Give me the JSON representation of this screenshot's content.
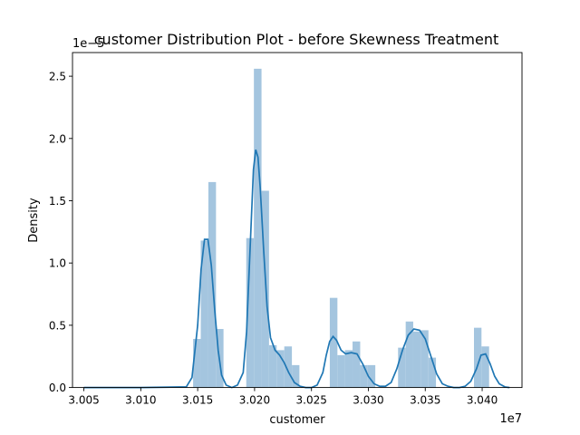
{
  "chart_data": {
    "type": "bar",
    "title": "customer Distribution Plot - before Skewness Treatment",
    "xlabel": "customer",
    "ylabel": "Density",
    "x_offset_label": "1e7",
    "y_offset_label": "1e−5",
    "xlim": [
      3.004,
      3.0435
    ],
    "ylim": [
      0,
      2.69
    ],
    "xticks": [
      3.005,
      3.01,
      3.015,
      3.02,
      3.025,
      3.03,
      3.035,
      3.04
    ],
    "xtick_labels": [
      "3.005",
      "3.010",
      "3.015",
      "3.020",
      "3.025",
      "3.030",
      "3.035",
      "3.040"
    ],
    "yticks": [
      0.0,
      0.5,
      1.0,
      1.5,
      2.0,
      2.5
    ],
    "ytick_labels": [
      "0.0",
      "0.5",
      "1.0",
      "1.5",
      "2.0",
      "2.5"
    ],
    "grid": false,
    "colors": {
      "bars": "#a4c5df",
      "kde": "#1f77b4",
      "axes": "#000000"
    },
    "bins": [
      {
        "x0": 3.0146,
        "x1": 3.01527,
        "value": 0.39
      },
      {
        "x0": 3.01527,
        "x1": 3.01594,
        "value": 1.18
      },
      {
        "x0": 3.01594,
        "x1": 3.01661,
        "value": 1.65
      },
      {
        "x0": 3.01661,
        "x1": 3.01727,
        "value": 0.47
      },
      {
        "x0": 3.01927,
        "x1": 3.01994,
        "value": 1.2
      },
      {
        "x0": 3.01994,
        "x1": 3.02061,
        "value": 2.56
      },
      {
        "x0": 3.02061,
        "x1": 3.02127,
        "value": 1.58
      },
      {
        "x0": 3.02127,
        "x1": 3.02194,
        "value": 0.34
      },
      {
        "x0": 3.02194,
        "x1": 3.02261,
        "value": 0.3
      },
      {
        "x0": 3.02261,
        "x1": 3.02328,
        "value": 0.33
      },
      {
        "x0": 3.02328,
        "x1": 3.02394,
        "value": 0.18
      },
      {
        "x0": 3.02661,
        "x1": 3.02728,
        "value": 0.72
      },
      {
        "x0": 3.02728,
        "x1": 3.02794,
        "value": 0.26
      },
      {
        "x0": 3.02794,
        "x1": 3.02861,
        "value": 0.3
      },
      {
        "x0": 3.02861,
        "x1": 3.02928,
        "value": 0.37
      },
      {
        "x0": 3.02928,
        "x1": 3.02994,
        "value": 0.18
      },
      {
        "x0": 3.02994,
        "x1": 3.03061,
        "value": 0.18
      },
      {
        "x0": 3.03261,
        "x1": 3.03328,
        "value": 0.32
      },
      {
        "x0": 3.03328,
        "x1": 3.03394,
        "value": 0.53
      },
      {
        "x0": 3.03394,
        "x1": 3.03461,
        "value": 0.45
      },
      {
        "x0": 3.03461,
        "x1": 3.03528,
        "value": 0.46
      },
      {
        "x0": 3.03528,
        "x1": 3.03594,
        "value": 0.24
      },
      {
        "x0": 3.03928,
        "x1": 3.03994,
        "value": 0.48
      },
      {
        "x0": 3.03994,
        "x1": 3.04061,
        "value": 0.33
      }
    ],
    "kde": {
      "x": [
        3.005,
        3.01,
        3.014,
        3.0145,
        3.015,
        3.0153,
        3.0156,
        3.0159,
        3.0162,
        3.0165,
        3.0168,
        3.0171,
        3.0175,
        3.018,
        3.0185,
        3.019,
        3.0193,
        3.0196,
        3.0199,
        3.0201,
        3.0203,
        3.0205,
        3.0208,
        3.0211,
        3.0214,
        3.0218,
        3.0222,
        3.0226,
        3.023,
        3.0235,
        3.024,
        3.0245,
        3.025,
        3.0255,
        3.026,
        3.0263,
        3.0266,
        3.0269,
        3.0272,
        3.0276,
        3.028,
        3.0285,
        3.029,
        3.0295,
        3.03,
        3.0305,
        3.031,
        3.0315,
        3.032,
        3.0325,
        3.033,
        3.0335,
        3.034,
        3.0345,
        3.035,
        3.0355,
        3.036,
        3.0365,
        3.037,
        3.0375,
        3.038,
        3.0385,
        3.039,
        3.0395,
        3.0399,
        3.0403,
        3.0407,
        3.0411,
        3.0415,
        3.042,
        3.0424
      ],
      "y": [
        0.0,
        0.0,
        0.005,
        0.08,
        0.5,
        0.95,
        1.19,
        1.19,
        0.98,
        0.62,
        0.3,
        0.1,
        0.02,
        0.0,
        0.02,
        0.12,
        0.45,
        1.1,
        1.75,
        1.91,
        1.85,
        1.6,
        1.1,
        0.65,
        0.4,
        0.3,
        0.26,
        0.2,
        0.12,
        0.04,
        0.01,
        0.0,
        0.0,
        0.02,
        0.12,
        0.26,
        0.37,
        0.41,
        0.38,
        0.3,
        0.27,
        0.28,
        0.27,
        0.19,
        0.09,
        0.03,
        0.01,
        0.01,
        0.04,
        0.15,
        0.3,
        0.42,
        0.47,
        0.46,
        0.39,
        0.25,
        0.11,
        0.03,
        0.01,
        0.0,
        0.0,
        0.01,
        0.05,
        0.15,
        0.26,
        0.27,
        0.19,
        0.09,
        0.03,
        0.005,
        0.0
      ]
    }
  }
}
